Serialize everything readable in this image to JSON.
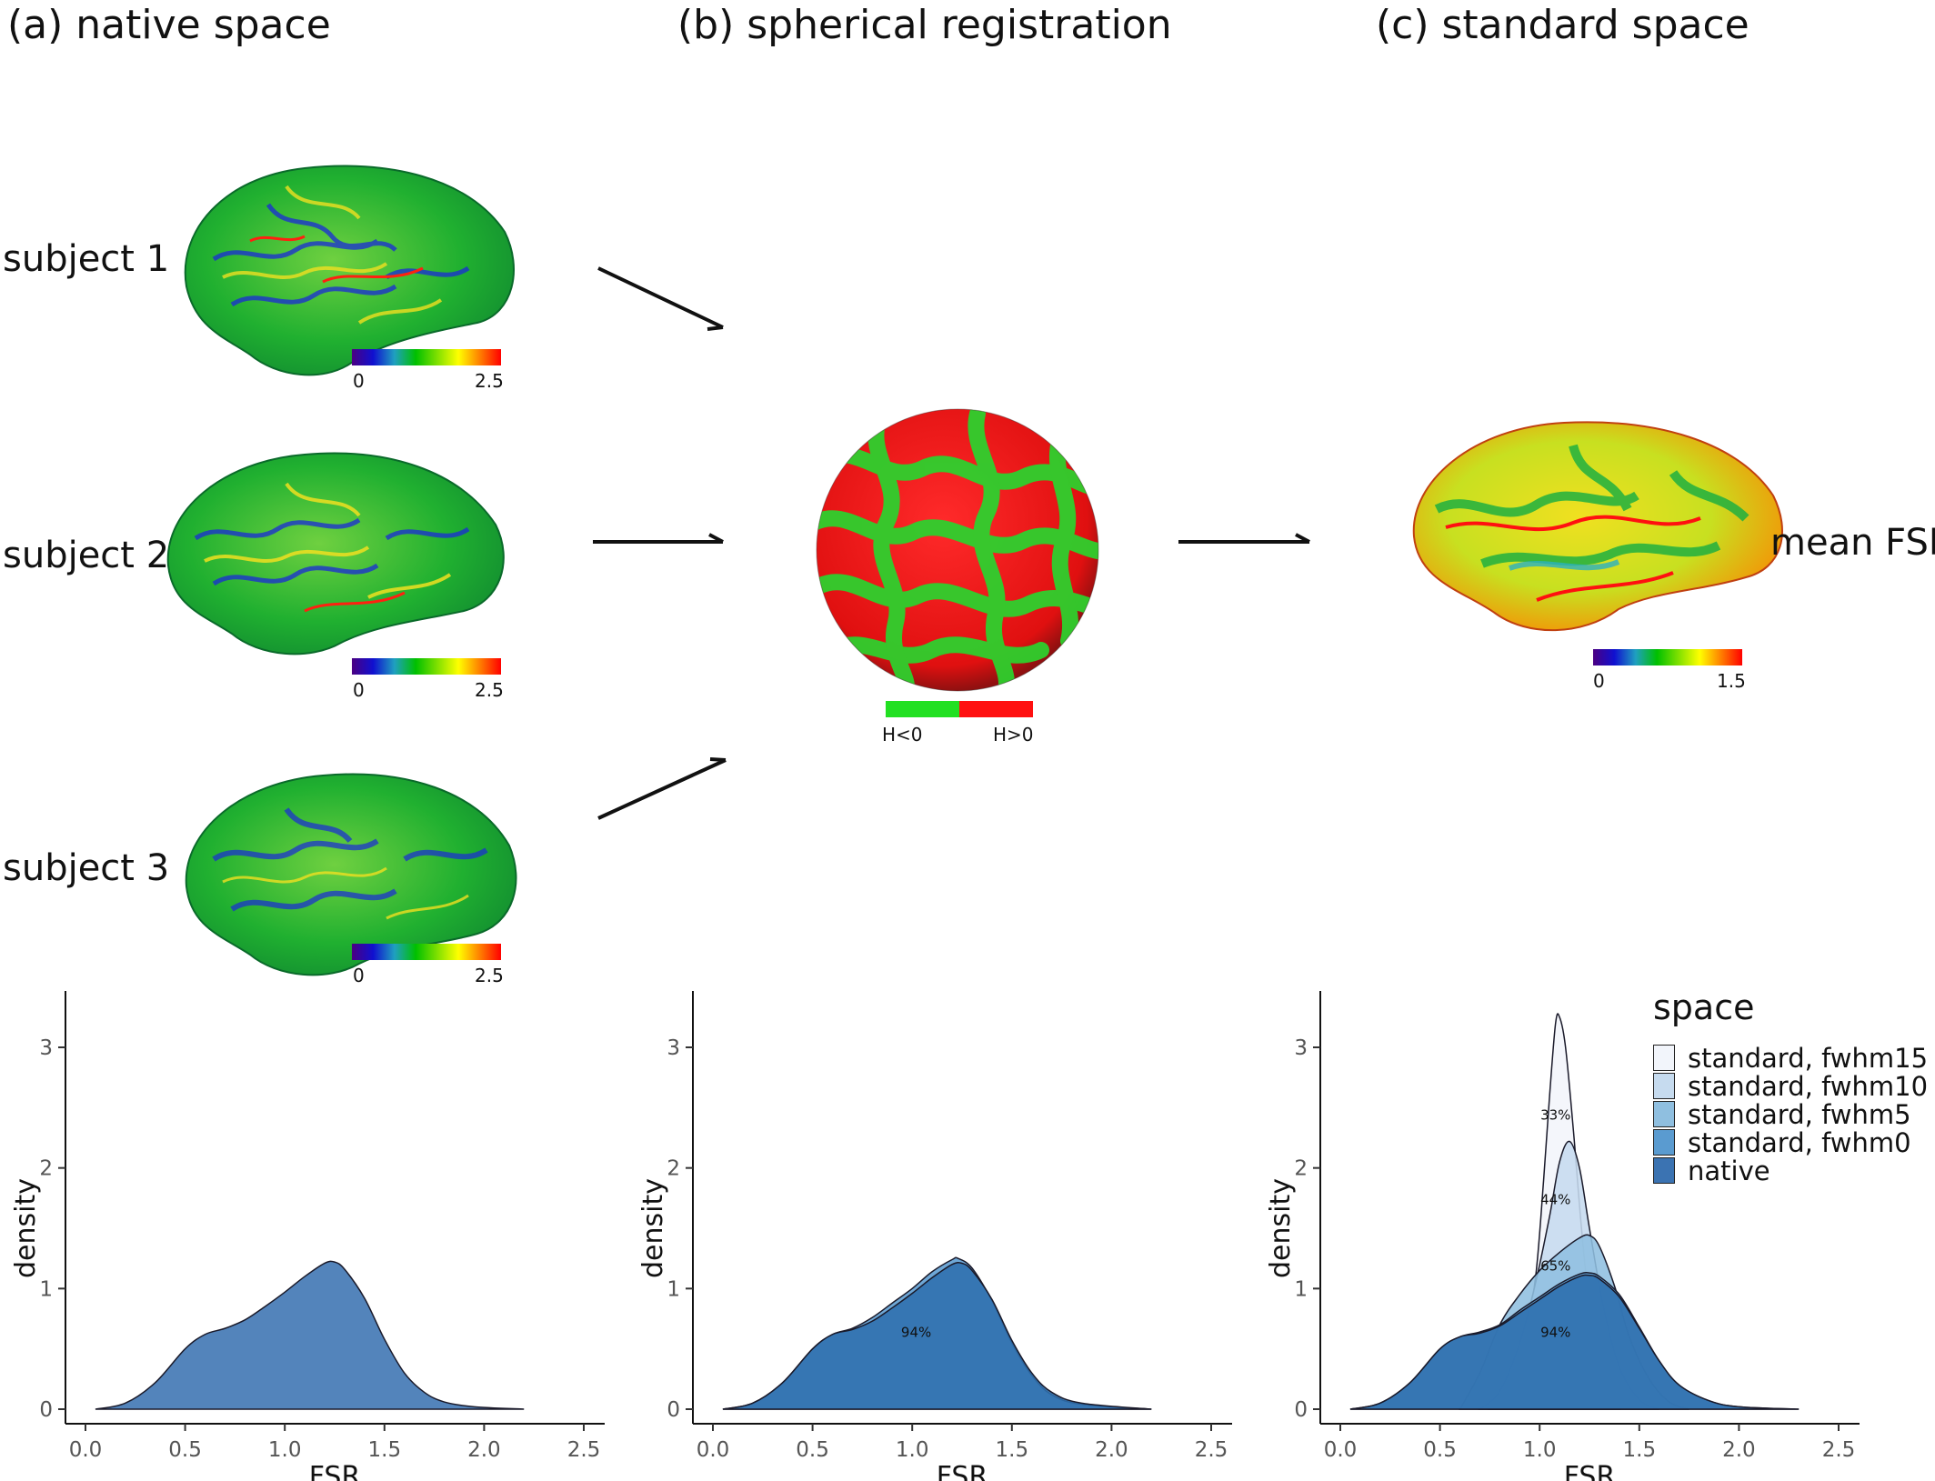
{
  "panels": [
    {
      "title": "(a)  native space"
    },
    {
      "title": "(b)  spherical registration"
    },
    {
      "title": "(c)  standard space"
    }
  ],
  "subjects": [
    "subject 1",
    "subject 2",
    "subject 3"
  ],
  "colorbars": {
    "native_min": "0",
    "native_max": "2.5",
    "standard_min": "0",
    "standard_max": "1.5",
    "rainbow": [
      "#4b0082",
      "#1010d0",
      "#1fa0c0",
      "#00c000",
      "#7fe000",
      "#ffff00",
      "#ff8000",
      "#ff0000"
    ]
  },
  "sphere": {
    "legend": [
      "H<0",
      "H>0"
    ],
    "colors": [
      "#22e022",
      "#ff1010"
    ]
  },
  "mean_label": "mean FSR",
  "legend": {
    "title": "space",
    "items": [
      {
        "label": "standard, fwhm15",
        "color": "#f2f5fb"
      },
      {
        "label": "standard, fwhm10",
        "color": "#c6dbef"
      },
      {
        "label": "standard, fwhm5",
        "color": "#8fbfe0"
      },
      {
        "label": "standard, fwhm0",
        "color": "#5a9bd0"
      },
      {
        "label": "native",
        "color": "#3b73b2"
      }
    ]
  },
  "chart_data": [
    {
      "type": "area",
      "xlabel": "FSR",
      "ylabel": "density",
      "xlim": [
        0,
        2.5
      ],
      "ylim": [
        0,
        3
      ],
      "xticks": [
        "0.0",
        "0.5",
        "1.0",
        "1.5",
        "2.0",
        "2.5"
      ],
      "yticks": [
        "0",
        "1",
        "2",
        "3"
      ],
      "annotations": [],
      "series": [
        {
          "color": "#3b73b2",
          "points": [
            [
              0.05,
              0
            ],
            [
              0.2,
              0.05
            ],
            [
              0.35,
              0.22
            ],
            [
              0.5,
              0.5
            ],
            [
              0.6,
              0.62
            ],
            [
              0.7,
              0.67
            ],
            [
              0.8,
              0.74
            ],
            [
              0.9,
              0.85
            ],
            [
              1.0,
              0.97
            ],
            [
              1.1,
              1.1
            ],
            [
              1.2,
              1.21
            ],
            [
              1.25,
              1.22
            ],
            [
              1.3,
              1.16
            ],
            [
              1.4,
              0.92
            ],
            [
              1.5,
              0.58
            ],
            [
              1.6,
              0.3
            ],
            [
              1.7,
              0.14
            ],
            [
              1.8,
              0.06
            ],
            [
              1.95,
              0.02
            ],
            [
              2.2,
              0
            ]
          ]
        }
      ]
    },
    {
      "type": "area",
      "xlabel": "FSR",
      "ylabel": "density",
      "xlim": [
        0,
        2.5
      ],
      "ylim": [
        0,
        3
      ],
      "xticks": [
        "0.0",
        "0.5",
        "1.0",
        "1.5",
        "2.0",
        "2.5"
      ],
      "yticks": [
        "0",
        "1",
        "2",
        "3"
      ],
      "annotations": [
        {
          "text": "94%",
          "x": 1.02,
          "y": 0.6
        }
      ],
      "series": [
        {
          "color": "#5a9bd0",
          "points": [
            [
              0.05,
              0
            ],
            [
              0.2,
              0.05
            ],
            [
              0.35,
              0.22
            ],
            [
              0.5,
              0.5
            ],
            [
              0.6,
              0.62
            ],
            [
              0.7,
              0.67
            ],
            [
              0.8,
              0.76
            ],
            [
              0.9,
              0.88
            ],
            [
              1.0,
              1.0
            ],
            [
              1.1,
              1.14
            ],
            [
              1.2,
              1.24
            ],
            [
              1.23,
              1.25
            ],
            [
              1.3,
              1.17
            ],
            [
              1.4,
              0.9
            ],
            [
              1.5,
              0.55
            ],
            [
              1.6,
              0.28
            ],
            [
              1.7,
              0.12
            ],
            [
              1.85,
              0.04
            ],
            [
              2.2,
              0
            ]
          ]
        },
        {
          "color": "#2f6fae",
          "points": [
            [
              0.05,
              0
            ],
            [
              0.2,
              0.05
            ],
            [
              0.35,
              0.22
            ],
            [
              0.5,
              0.5
            ],
            [
              0.6,
              0.62
            ],
            [
              0.7,
              0.66
            ],
            [
              0.8,
              0.73
            ],
            [
              0.9,
              0.84
            ],
            [
              1.0,
              0.96
            ],
            [
              1.1,
              1.09
            ],
            [
              1.2,
              1.2
            ],
            [
              1.25,
              1.21
            ],
            [
              1.3,
              1.15
            ],
            [
              1.4,
              0.91
            ],
            [
              1.5,
              0.57
            ],
            [
              1.6,
              0.3
            ],
            [
              1.7,
              0.14
            ],
            [
              1.85,
              0.05
            ],
            [
              2.2,
              0
            ]
          ]
        }
      ]
    },
    {
      "type": "area",
      "xlabel": "FSR",
      "ylabel": "density",
      "xlim": [
        0,
        2.5
      ],
      "ylim": [
        0,
        3
      ],
      "xticks": [
        "0.0",
        "0.5",
        "1.0",
        "1.5",
        "2.0",
        "2.5"
      ],
      "yticks": [
        "0",
        "1",
        "2",
        "3"
      ],
      "annotations": [
        {
          "text": "33%",
          "x": 1.08,
          "y": 2.4
        },
        {
          "text": "44%",
          "x": 1.08,
          "y": 1.7
        },
        {
          "text": "65%",
          "x": 1.08,
          "y": 1.15
        },
        {
          "text": "94%",
          "x": 1.08,
          "y": 0.6
        }
      ],
      "series": [
        {
          "name": "standard, fwhm15",
          "color": "#f2f5fb",
          "points": [
            [
              0.75,
              0
            ],
            [
              0.85,
              0.12
            ],
            [
              0.92,
              0.5
            ],
            [
              0.98,
              1.1
            ],
            [
              1.02,
              1.9
            ],
            [
              1.05,
              2.6
            ],
            [
              1.08,
              3.2
            ],
            [
              1.1,
              3.25
            ],
            [
              1.13,
              3.0
            ],
            [
              1.17,
              2.3
            ],
            [
              1.21,
              1.5
            ],
            [
              1.26,
              0.7
            ],
            [
              1.32,
              0.2
            ],
            [
              1.4,
              0
            ]
          ]
        },
        {
          "name": "standard, fwhm10",
          "color": "#c6dbef",
          "points": [
            [
              0.7,
              0
            ],
            [
              0.8,
              0.15
            ],
            [
              0.9,
              0.55
            ],
            [
              0.98,
              1.05
            ],
            [
              1.05,
              1.6
            ],
            [
              1.1,
              2.05
            ],
            [
              1.15,
              2.22
            ],
            [
              1.2,
              2.0
            ],
            [
              1.25,
              1.5
            ],
            [
              1.32,
              0.85
            ],
            [
              1.4,
              0.35
            ],
            [
              1.5,
              0.08
            ],
            [
              1.6,
              0
            ]
          ]
        },
        {
          "name": "standard, fwhm5",
          "color": "#8fbfe0",
          "points": [
            [
              0.6,
              0
            ],
            [
              0.7,
              0.3
            ],
            [
              0.8,
              0.7
            ],
            [
              0.9,
              0.95
            ],
            [
              1.0,
              1.15
            ],
            [
              1.1,
              1.3
            ],
            [
              1.2,
              1.42
            ],
            [
              1.25,
              1.44
            ],
            [
              1.3,
              1.35
            ],
            [
              1.38,
              1.0
            ],
            [
              1.45,
              0.6
            ],
            [
              1.55,
              0.25
            ],
            [
              1.65,
              0.06
            ],
            [
              1.75,
              0
            ]
          ]
        },
        {
          "name": "standard, fwhm0",
          "color": "#5a9bd0",
          "points": [
            [
              0.05,
              0
            ],
            [
              0.2,
              0.05
            ],
            [
              0.35,
              0.22
            ],
            [
              0.5,
              0.5
            ],
            [
              0.6,
              0.6
            ],
            [
              0.7,
              0.64
            ],
            [
              0.8,
              0.7
            ],
            [
              0.9,
              0.82
            ],
            [
              1.0,
              0.93
            ],
            [
              1.1,
              1.04
            ],
            [
              1.2,
              1.12
            ],
            [
              1.25,
              1.13
            ],
            [
              1.3,
              1.1
            ],
            [
              1.4,
              0.95
            ],
            [
              1.5,
              0.68
            ],
            [
              1.6,
              0.4
            ],
            [
              1.7,
              0.2
            ],
            [
              1.85,
              0.07
            ],
            [
              2.0,
              0.02
            ],
            [
              2.3,
              0
            ]
          ]
        },
        {
          "name": "native",
          "color": "#2f6fae",
          "points": [
            [
              0.05,
              0
            ],
            [
              0.2,
              0.05
            ],
            [
              0.35,
              0.22
            ],
            [
              0.5,
              0.5
            ],
            [
              0.6,
              0.6
            ],
            [
              0.7,
              0.63
            ],
            [
              0.8,
              0.69
            ],
            [
              0.9,
              0.8
            ],
            [
              1.0,
              0.91
            ],
            [
              1.1,
              1.02
            ],
            [
              1.2,
              1.1
            ],
            [
              1.25,
              1.11
            ],
            [
              1.3,
              1.08
            ],
            [
              1.4,
              0.93
            ],
            [
              1.5,
              0.67
            ],
            [
              1.6,
              0.4
            ],
            [
              1.7,
              0.2
            ],
            [
              1.85,
              0.07
            ],
            [
              2.0,
              0.02
            ],
            [
              2.3,
              0
            ]
          ]
        }
      ]
    }
  ]
}
